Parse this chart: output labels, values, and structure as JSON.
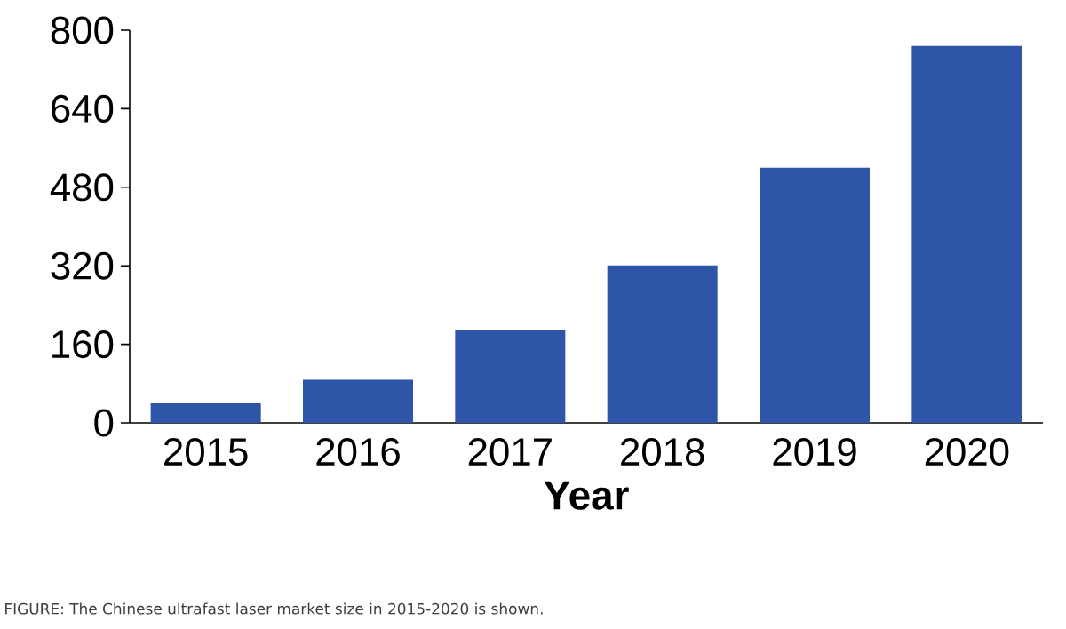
{
  "chart_data": {
    "type": "bar",
    "xlabel": "Year",
    "categories": [
      "2015",
      "2016",
      "2017",
      "2018",
      "2019",
      "2020"
    ],
    "values": [
      40,
      88,
      190,
      321,
      520,
      768
    ],
    "color": "#2f55a8",
    "ylim": [
      0,
      800
    ],
    "yticks": [
      0,
      160,
      320,
      480,
      640,
      800
    ],
    "grid": false,
    "annotations": [
      "FIGURE: The Chinese ultrafast laser market size in 2015-2020 is shown."
    ]
  }
}
